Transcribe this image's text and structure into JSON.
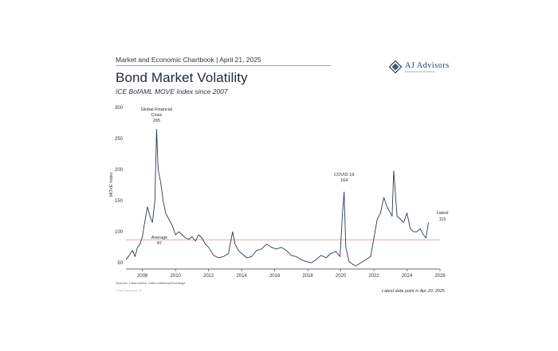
{
  "header": {
    "report": "Market and Economic Chartbook | April 21, 2025",
    "title": "Bond Market Volatility",
    "subtitle": "ICE BofAML MOVE Index since 2007"
  },
  "logo": {
    "name": "AJ Advisors",
    "tagline": "Personalized Financial Solutions",
    "brand_color": "#243a5e"
  },
  "footer": {
    "sources": "Sources: Clearnomics, Intercontinental Exchange",
    "copyright": "© 2025 Clearnomics, Inc.",
    "note": "Latest data point is Apr 20, 2025"
  },
  "chart_data": {
    "type": "line",
    "ylabel": "MOVE Index",
    "xlabel": "",
    "ylim": [
      40,
      300
    ],
    "yticks": [
      50,
      100,
      150,
      200,
      250,
      300
    ],
    "xlim": [
      2007.0,
      2026.0
    ],
    "xticks": [
      2008,
      2010,
      2012,
      2014,
      2016,
      2018,
      2020,
      2022,
      2024,
      2026
    ],
    "line_color": "#2b3a4a",
    "average": {
      "value": 87,
      "label": "Average",
      "value_label": "87",
      "color": "#d9a2a2"
    },
    "annotations": [
      {
        "label": "Global Financial",
        "label2": "Crisis",
        "value_label": "265",
        "x": 2008.85,
        "y": 265
      },
      {
        "label": "COVID-19",
        "value_label": "164",
        "x": 2020.2,
        "y": 164
      },
      {
        "label": "Latest",
        "value_label": "115",
        "x": 2025.3,
        "y": 115
      }
    ],
    "series": [
      {
        "x": [
          2007.0,
          2007.2,
          2007.4,
          2007.55,
          2007.7,
          2007.85,
          2008.0,
          2008.1,
          2008.2,
          2008.3,
          2008.45,
          2008.6,
          2008.75,
          2008.85,
          2008.95,
          2009.1,
          2009.25,
          2009.4,
          2009.6,
          2009.8,
          2010.0,
          2010.2,
          2010.4,
          2010.6,
          2010.8,
          2011.0,
          2011.2,
          2011.4,
          2011.6,
          2011.8,
          2012.0,
          2012.3,
          2012.6,
          2012.9,
          2013.2,
          2013.45,
          2013.6,
          2013.8,
          2014.0,
          2014.3,
          2014.6,
          2014.9,
          2015.2,
          2015.5,
          2015.8,
          2016.1,
          2016.4,
          2016.7,
          2017.0,
          2017.3,
          2017.6,
          2017.9,
          2018.2,
          2018.5,
          2018.8,
          2019.1,
          2019.4,
          2019.7,
          2019.95,
          2020.1,
          2020.2,
          2020.3,
          2020.5,
          2020.7,
          2020.9,
          2021.2,
          2021.5,
          2021.8,
          2022.0,
          2022.2,
          2022.4,
          2022.6,
          2022.8,
          2023.0,
          2023.1,
          2023.2,
          2023.4,
          2023.6,
          2023.8,
          2024.0,
          2024.2,
          2024.4,
          2024.6,
          2024.8,
          2025.0,
          2025.15,
          2025.3
        ],
        "y": [
          55,
          62,
          70,
          60,
          75,
          80,
          92,
          110,
          125,
          140,
          125,
          115,
          150,
          265,
          200,
          180,
          150,
          130,
          120,
          110,
          95,
          100,
          95,
          90,
          88,
          92,
          85,
          95,
          90,
          80,
          75,
          62,
          58,
          60,
          65,
          100,
          80,
          70,
          65,
          58,
          60,
          70,
          72,
          80,
          75,
          72,
          75,
          70,
          62,
          60,
          55,
          52,
          50,
          55,
          62,
          58,
          65,
          68,
          60,
          130,
          164,
          75,
          52,
          48,
          45,
          50,
          55,
          60,
          90,
          120,
          130,
          155,
          140,
          130,
          125,
          198,
          125,
          120,
          115,
          130,
          105,
          100,
          100,
          105,
          95,
          90,
          115
        ]
      }
    ]
  }
}
